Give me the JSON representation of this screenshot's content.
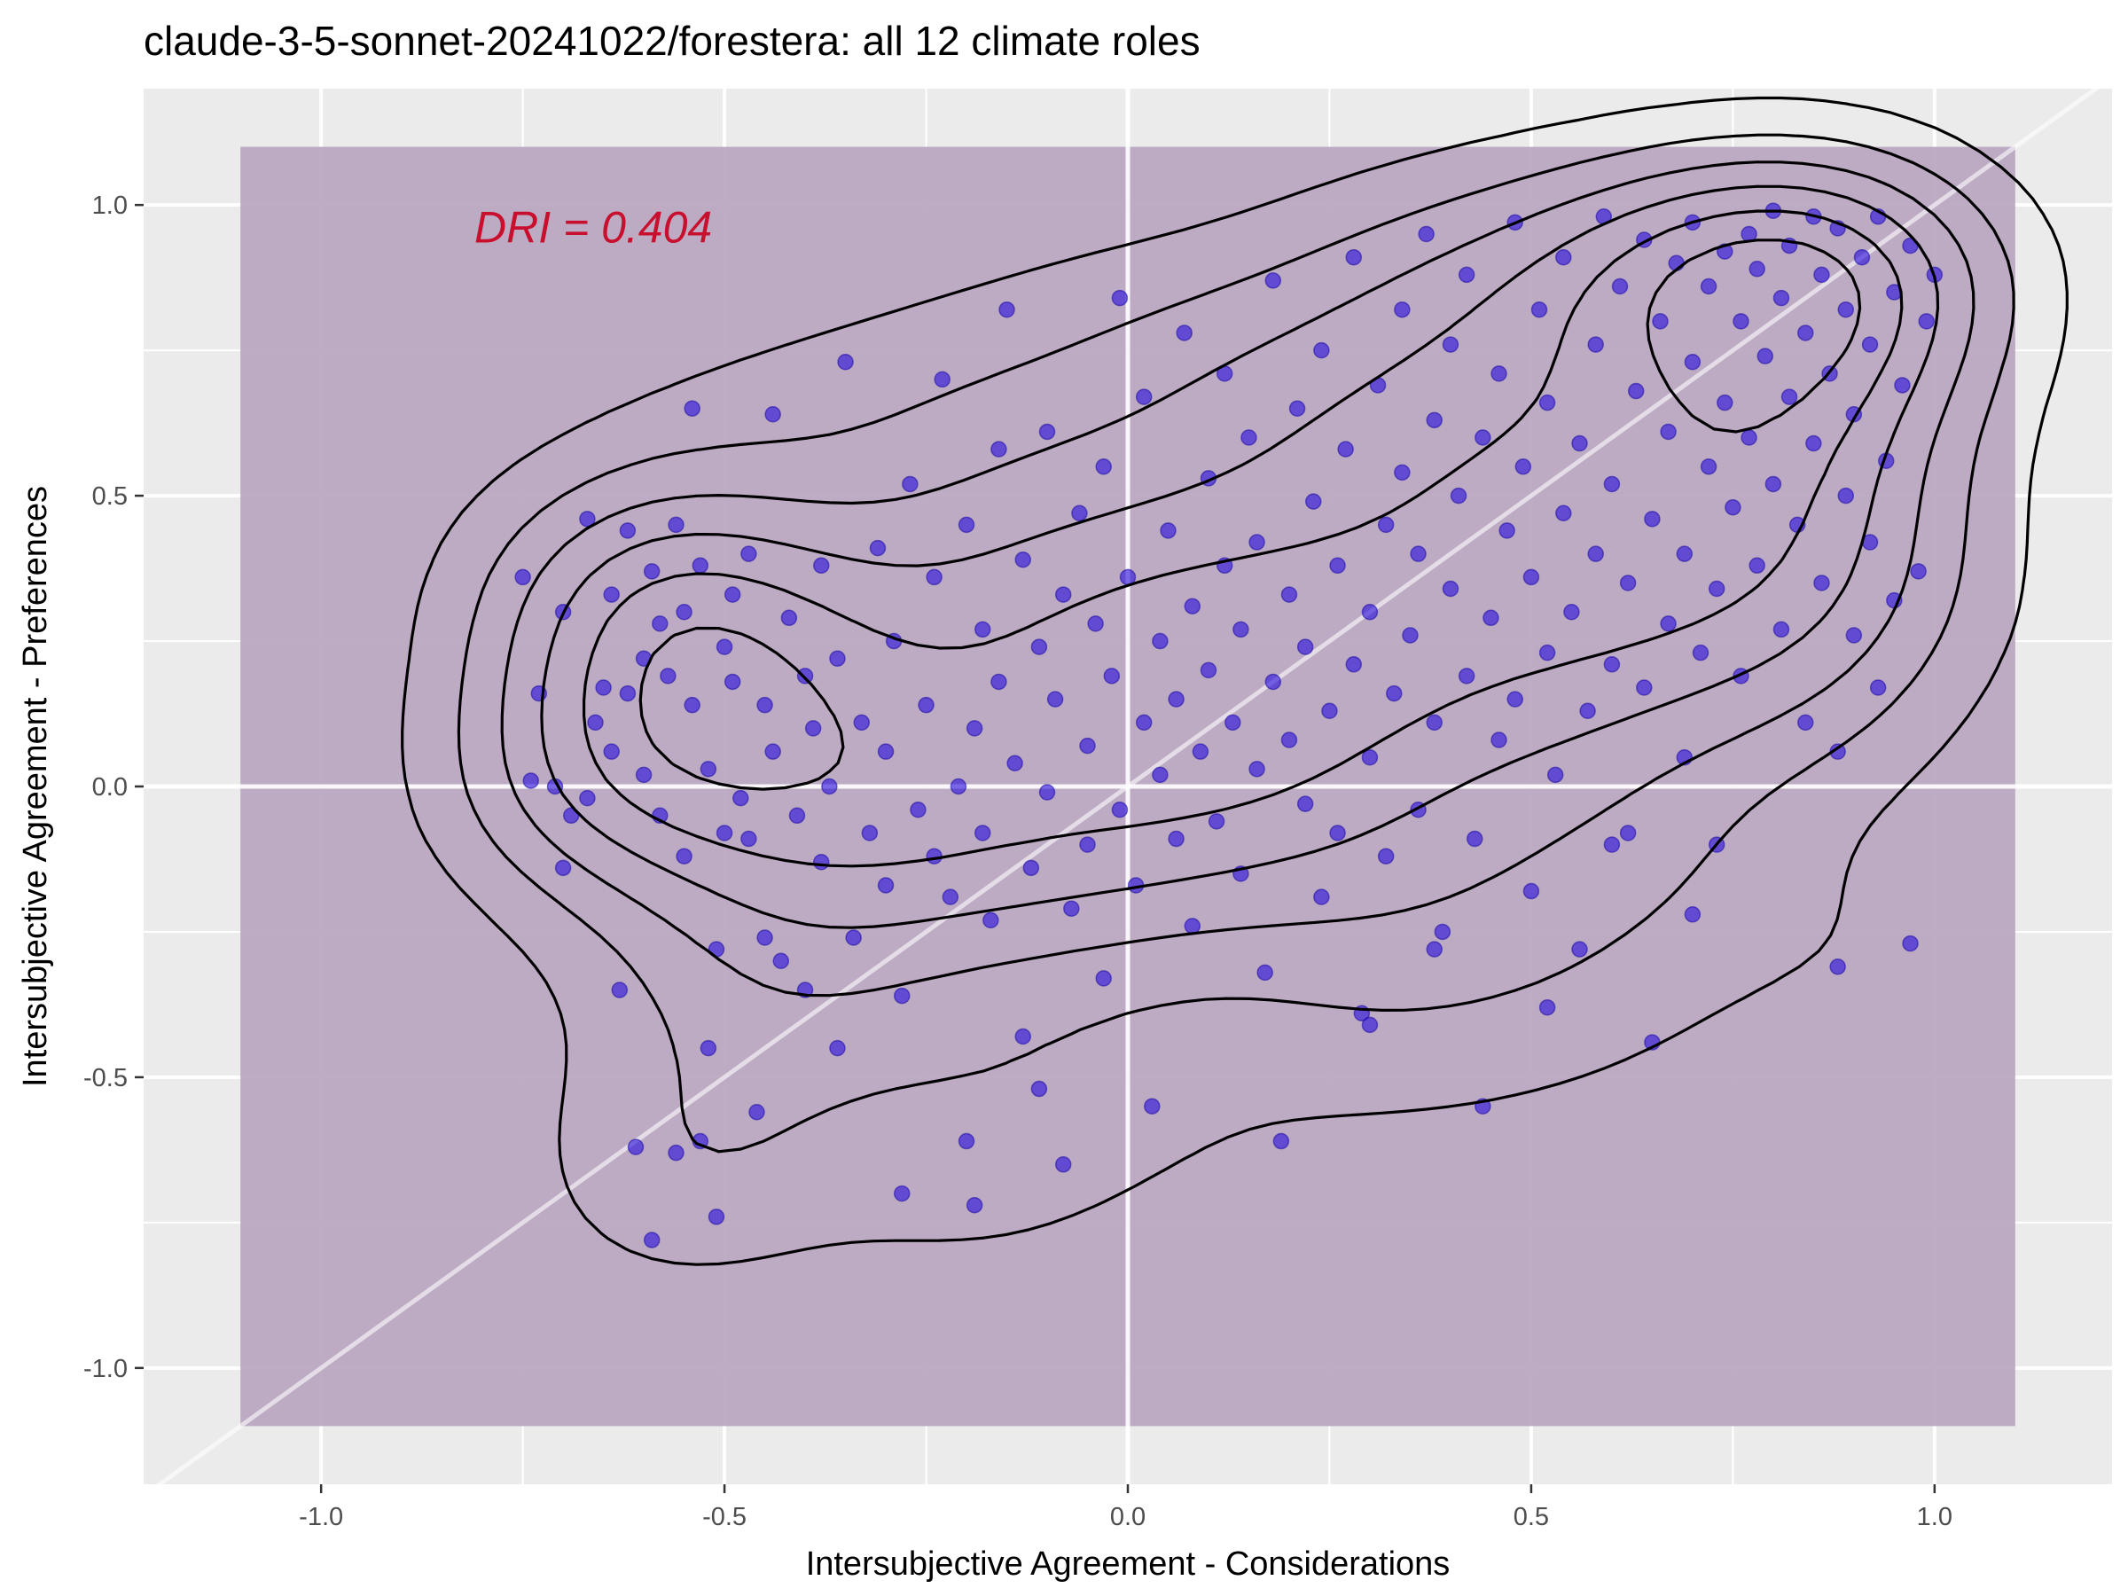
{
  "chart_data": {
    "type": "scatter",
    "title": "claude-3-5-sonnet-20241022/forestera: all 12 climate roles",
    "xlabel": "Intersubjective Agreement - Considerations",
    "ylabel": "Intersubjective Agreement - Preferences",
    "xlim": [
      -1.22,
      1.22
    ],
    "ylim": [
      -1.2,
      1.2
    ],
    "x_ticks": [
      -1.0,
      -0.5,
      0.0,
      0.5,
      1.0
    ],
    "x_tick_labels": [
      "-1.0",
      "-0.5",
      "0.0",
      "0.5",
      "1.0"
    ],
    "y_ticks": [
      -1.0,
      -0.5,
      0.0,
      0.5,
      1.0
    ],
    "y_tick_labels": [
      "-1.0",
      "-0.5",
      "0.0",
      "0.5",
      "1.0"
    ],
    "grid": true,
    "background_color": "#ebebeb",
    "shaded_region": {
      "x": [
        -1.1,
        1.1
      ],
      "y": [
        -1.1,
        1.1
      ],
      "color": "#b9a5c0"
    },
    "reference_lines": [
      {
        "type": "vertical",
        "x": 0
      },
      {
        "type": "horizontal",
        "y": 0
      },
      {
        "type": "diagonal",
        "slope": 1,
        "intercept": 0
      }
    ],
    "annotation": {
      "text": "DRI = 0.404",
      "x": -0.81,
      "y": 0.96,
      "color": "#c8102e"
    },
    "point_color": "#2a10dc",
    "density_contour_levels": 6,
    "points": [
      [
        -0.75,
        0.36
      ],
      [
        -0.74,
        0.01
      ],
      [
        -0.73,
        0.16
      ],
      [
        -0.71,
        0.0
      ],
      [
        -0.7,
        -0.14
      ],
      [
        -0.7,
        0.3
      ],
      [
        -0.69,
        -0.05
      ],
      [
        -0.67,
        0.46
      ],
      [
        -0.67,
        -0.02
      ],
      [
        -0.66,
        0.11
      ],
      [
        -0.65,
        0.17
      ],
      [
        -0.64,
        0.33
      ],
      [
        -0.64,
        0.06
      ],
      [
        -0.63,
        -0.35
      ],
      [
        -0.62,
        0.16
      ],
      [
        -0.62,
        0.44
      ],
      [
        -0.61,
        -0.62
      ],
      [
        -0.6,
        0.22
      ],
      [
        -0.6,
        0.02
      ],
      [
        -0.59,
        -0.78
      ],
      [
        -0.59,
        0.37
      ],
      [
        -0.58,
        0.28
      ],
      [
        -0.58,
        -0.05
      ],
      [
        -0.57,
        0.19
      ],
      [
        -0.56,
        0.45
      ],
      [
        -0.56,
        -0.63
      ],
      [
        -0.55,
        0.3
      ],
      [
        -0.55,
        -0.12
      ],
      [
        -0.54,
        0.65
      ],
      [
        -0.54,
        0.14
      ],
      [
        -0.53,
        -0.61
      ],
      [
        -0.53,
        0.38
      ],
      [
        -0.52,
        -0.45
      ],
      [
        -0.52,
        0.03
      ],
      [
        -0.51,
        -0.74
      ],
      [
        -0.51,
        -0.28
      ],
      [
        -0.5,
        0.24
      ],
      [
        -0.5,
        -0.08
      ],
      [
        -0.49,
        0.33
      ],
      [
        -0.49,
        0.18
      ],
      [
        -0.48,
        -0.02
      ],
      [
        -0.47,
        -0.09
      ],
      [
        -0.47,
        0.4
      ],
      [
        -0.46,
        -0.56
      ],
      [
        -0.45,
        0.14
      ],
      [
        -0.45,
        -0.26
      ],
      [
        -0.44,
        0.64
      ],
      [
        -0.44,
        0.06
      ],
      [
        -0.43,
        -0.3
      ],
      [
        -0.42,
        0.29
      ],
      [
        -0.41,
        -0.05
      ],
      [
        -0.4,
        0.19
      ],
      [
        -0.4,
        -0.35
      ],
      [
        -0.39,
        0.1
      ],
      [
        -0.38,
        0.38
      ],
      [
        -0.38,
        -0.13
      ],
      [
        -0.37,
        0.0
      ],
      [
        -0.36,
        -0.45
      ],
      [
        -0.36,
        0.22
      ],
      [
        -0.35,
        0.73
      ],
      [
        -0.34,
        -0.26
      ],
      [
        -0.33,
        0.11
      ],
      [
        -0.32,
        -0.08
      ],
      [
        -0.31,
        0.41
      ],
      [
        -0.3,
        -0.17
      ],
      [
        -0.3,
        0.06
      ],
      [
        -0.29,
        0.25
      ],
      [
        -0.28,
        -0.7
      ],
      [
        -0.28,
        -0.36
      ],
      [
        -0.27,
        0.52
      ],
      [
        -0.26,
        -0.04
      ],
      [
        -0.25,
        0.14
      ],
      [
        -0.24,
        -0.12
      ],
      [
        -0.24,
        0.36
      ],
      [
        -0.23,
        0.7
      ],
      [
        -0.22,
        -0.19
      ],
      [
        -0.21,
        0.0
      ],
      [
        -0.2,
        0.45
      ],
      [
        -0.2,
        -0.61
      ],
      [
        -0.19,
        -0.72
      ],
      [
        -0.19,
        0.1
      ],
      [
        -0.18,
        0.27
      ],
      [
        -0.18,
        -0.08
      ],
      [
        -0.17,
        -0.23
      ],
      [
        -0.16,
        0.58
      ],
      [
        -0.16,
        0.18
      ],
      [
        -0.15,
        0.82
      ],
      [
        -0.14,
        0.04
      ],
      [
        -0.13,
        -0.43
      ],
      [
        -0.13,
        0.39
      ],
      [
        -0.12,
        -0.14
      ],
      [
        -0.11,
        0.24
      ],
      [
        -0.11,
        -0.52
      ],
      [
        -0.1,
        0.61
      ],
      [
        -0.1,
        -0.01
      ],
      [
        -0.09,
        0.15
      ],
      [
        -0.08,
        -0.65
      ],
      [
        -0.08,
        0.33
      ],
      [
        -0.07,
        -0.21
      ],
      [
        -0.06,
        0.47
      ],
      [
        -0.05,
        0.07
      ],
      [
        -0.05,
        -0.1
      ],
      [
        -0.04,
        0.28
      ],
      [
        -0.03,
        0.55
      ],
      [
        -0.03,
        -0.33
      ],
      [
        -0.02,
        0.19
      ],
      [
        -0.01,
        -0.04
      ],
      [
        -0.01,
        0.84
      ],
      [
        0.0,
        0.36
      ],
      [
        0.01,
        -0.17
      ],
      [
        0.02,
        0.11
      ],
      [
        0.02,
        0.67
      ],
      [
        0.03,
        -0.55
      ],
      [
        0.04,
        0.25
      ],
      [
        0.04,
        0.02
      ],
      [
        0.05,
        0.44
      ],
      [
        0.06,
        -0.09
      ],
      [
        0.06,
        0.15
      ],
      [
        0.07,
        0.78
      ],
      [
        0.08,
        0.31
      ],
      [
        0.08,
        -0.24
      ],
      [
        0.09,
        0.06
      ],
      [
        0.1,
        0.53
      ],
      [
        0.1,
        0.2
      ],
      [
        0.11,
        -0.06
      ],
      [
        0.12,
        0.38
      ],
      [
        0.12,
        0.71
      ],
      [
        0.13,
        0.11
      ],
      [
        0.14,
        -0.15
      ],
      [
        0.14,
        0.27
      ],
      [
        0.15,
        0.6
      ],
      [
        0.16,
        0.03
      ],
      [
        0.16,
        0.42
      ],
      [
        0.17,
        -0.32
      ],
      [
        0.18,
        0.18
      ],
      [
        0.18,
        0.87
      ],
      [
        0.19,
        -0.61
      ],
      [
        0.2,
        0.33
      ],
      [
        0.2,
        0.08
      ],
      [
        0.21,
        0.65
      ],
      [
        0.22,
        -0.03
      ],
      [
        0.22,
        0.24
      ],
      [
        0.23,
        0.49
      ],
      [
        0.24,
        -0.19
      ],
      [
        0.24,
        0.75
      ],
      [
        0.25,
        0.13
      ],
      [
        0.26,
        0.38
      ],
      [
        0.26,
        -0.08
      ],
      [
        0.27,
        0.58
      ],
      [
        0.28,
        0.21
      ],
      [
        0.28,
        0.91
      ],
      [
        0.29,
        -0.39
      ],
      [
        0.3,
        0.3
      ],
      [
        0.3,
        0.05
      ],
      [
        0.31,
        0.69
      ],
      [
        0.32,
        0.45
      ],
      [
        0.32,
        -0.12
      ],
      [
        0.33,
        0.16
      ],
      [
        0.34,
        0.82
      ],
      [
        0.34,
        0.54
      ],
      [
        0.35,
        0.26
      ],
      [
        0.36,
        -0.04
      ],
      [
        0.36,
        0.4
      ],
      [
        0.37,
        0.95
      ],
      [
        0.38,
        0.63
      ],
      [
        0.38,
        0.11
      ],
      [
        0.39,
        -0.25
      ],
      [
        0.4,
        0.34
      ],
      [
        0.4,
        0.76
      ],
      [
        0.41,
        0.5
      ],
      [
        0.42,
        0.19
      ],
      [
        0.42,
        0.88
      ],
      [
        0.43,
        -0.09
      ],
      [
        0.44,
        0.6
      ],
      [
        0.44,
        -0.55
      ],
      [
        0.45,
        0.29
      ],
      [
        0.46,
        0.71
      ],
      [
        0.46,
        0.08
      ],
      [
        0.47,
        0.44
      ],
      [
        0.48,
        0.97
      ],
      [
        0.48,
        0.15
      ],
      [
        0.49,
        0.55
      ],
      [
        0.5,
        -0.18
      ],
      [
        0.5,
        0.36
      ],
      [
        0.51,
        0.82
      ],
      [
        0.52,
        0.23
      ],
      [
        0.52,
        0.66
      ],
      [
        0.53,
        0.02
      ],
      [
        0.54,
        0.47
      ],
      [
        0.54,
        0.91
      ],
      [
        0.55,
        0.3
      ],
      [
        0.56,
        -0.28
      ],
      [
        0.56,
        0.59
      ],
      [
        0.57,
        0.13
      ],
      [
        0.58,
        0.76
      ],
      [
        0.58,
        0.4
      ],
      [
        0.59,
        0.98
      ],
      [
        0.6,
        0.21
      ],
      [
        0.6,
        0.52
      ],
      [
        0.61,
        0.86
      ],
      [
        0.62,
        -0.08
      ],
      [
        0.62,
        0.35
      ],
      [
        0.63,
        0.68
      ],
      [
        0.64,
        0.94
      ],
      [
        0.64,
        0.17
      ],
      [
        0.65,
        -0.44
      ],
      [
        0.65,
        0.46
      ],
      [
        0.66,
        0.8
      ],
      [
        0.67,
        0.28
      ],
      [
        0.67,
        0.61
      ],
      [
        0.68,
        0.9
      ],
      [
        0.69,
        0.05
      ],
      [
        0.69,
        0.4
      ],
      [
        0.7,
        0.73
      ],
      [
        0.7,
        0.97
      ],
      [
        0.71,
        0.23
      ],
      [
        0.72,
        0.55
      ],
      [
        0.72,
        0.86
      ],
      [
        0.73,
        -0.1
      ],
      [
        0.73,
        0.34
      ],
      [
        0.74,
        0.66
      ],
      [
        0.74,
        0.92
      ],
      [
        0.75,
        0.48
      ],
      [
        0.76,
        0.8
      ],
      [
        0.76,
        0.19
      ],
      [
        0.77,
        0.95
      ],
      [
        0.77,
        0.6
      ],
      [
        0.78,
        0.89
      ],
      [
        0.78,
        0.38
      ],
      [
        0.79,
        0.74
      ],
      [
        0.8,
        0.99
      ],
      [
        0.8,
        0.52
      ],
      [
        0.81,
        0.84
      ],
      [
        0.81,
        0.27
      ],
      [
        0.82,
        0.67
      ],
      [
        0.82,
        0.93
      ],
      [
        0.83,
        0.45
      ],
      [
        0.84,
        0.78
      ],
      [
        0.84,
        0.11
      ],
      [
        0.85,
        0.98
      ],
      [
        0.85,
        0.59
      ],
      [
        0.86,
        0.88
      ],
      [
        0.86,
        0.35
      ],
      [
        0.87,
        0.71
      ],
      [
        0.88,
        0.06
      ],
      [
        0.88,
        0.96
      ],
      [
        0.89,
        0.5
      ],
      [
        0.89,
        0.82
      ],
      [
        0.9,
        0.26
      ],
      [
        0.9,
        0.64
      ],
      [
        0.91,
        0.91
      ],
      [
        0.92,
        0.42
      ],
      [
        0.92,
        0.76
      ],
      [
        0.93,
        0.17
      ],
      [
        0.93,
        0.98
      ],
      [
        0.94,
        0.56
      ],
      [
        0.95,
        0.85
      ],
      [
        0.95,
        0.32
      ],
      [
        0.96,
        0.69
      ],
      [
        0.97,
        -0.27
      ],
      [
        0.97,
        0.93
      ],
      [
        0.98,
        0.37
      ],
      [
        0.99,
        0.8
      ],
      [
        1.0,
        0.88
      ],
      [
        0.88,
        -0.31
      ],
      [
        0.7,
        -0.22
      ],
      [
        0.6,
        -0.1
      ],
      [
        0.52,
        -0.38
      ],
      [
        0.38,
        -0.28
      ],
      [
        0.3,
        -0.41
      ]
    ]
  }
}
